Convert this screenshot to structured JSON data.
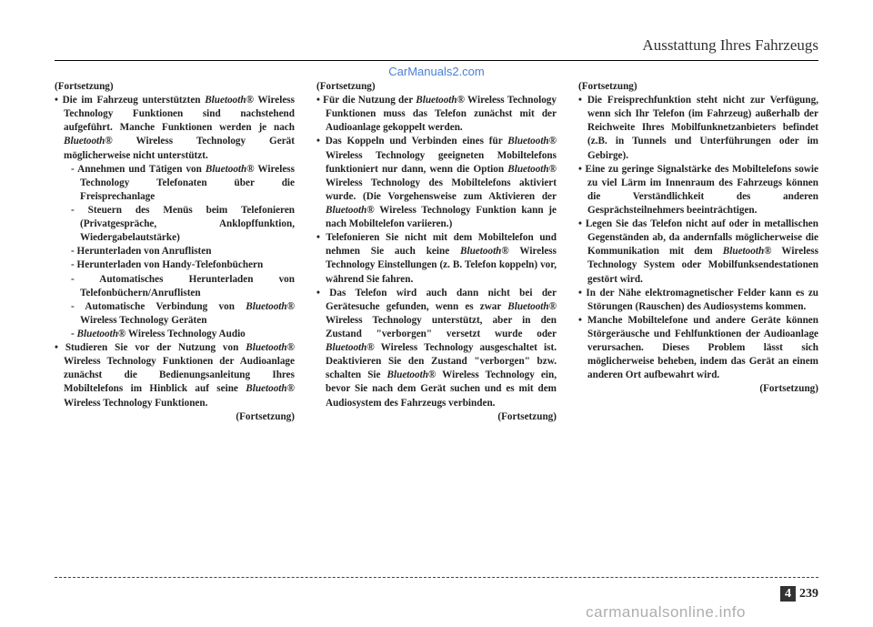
{
  "header": {
    "title": "Ausstattung Ihres Fahrzeugs"
  },
  "watermark": {
    "top": "CarManuals2.com",
    "bottom": "carmanualsonline.info"
  },
  "pageNumber": {
    "section": "4",
    "page": "239"
  },
  "labels": {
    "continuation": "(Fortsetzung)"
  },
  "col1": {
    "b1_lead": "Die im Fahrzeug unterstützten ",
    "b1_bt": "Bluetooth®",
    "b1_mid": " Wireless Technology Funktionen sind nachstehend aufgeführt. Manche Funktionen werden je nach ",
    "b1_bt2": "Bluetooth®",
    "b1_tail": " Wireless Technology Gerät möglicherweise nicht unterstützt.",
    "d1_a": "Annehmen und Tätigen von ",
    "d1_bt": "Bluetooth®",
    "d1_b": " Wireless Technology Telefonaten über die Freisprechanlage",
    "d2": "Steuern des Menüs beim Telefonieren (Privatgespräche, Anklopffunktion, Wiedergabelautstärke)",
    "d3": "Herunterladen von Anruflisten",
    "d4": "Herunterladen von Handy-Telefonbüchern",
    "d5": "Automatisches Herunterladen von Telefonbüchern/Anruflisten",
    "d6_a": "Automatische Verbindung von ",
    "d6_bt": "Bluetooth®",
    "d6_b": " Wireless Technology Geräten",
    "d7_bt": "Bluetooth®",
    "d7_b": " Wireless Technology Audio",
    "b2_a": "Studieren Sie vor der Nutzung von ",
    "b2_bt": "Bluetooth®",
    "b2_b": " Wireless Technology Funktionen der Audioanlage zunächst die Bedienungsanleitung Ihres Mobiltelefons im Hinblick auf seine ",
    "b2_bt2": "Bluetooth®",
    "b2_c": " Wireless Technology Funktionen."
  },
  "col2": {
    "b1_a": "Für die Nutzung der ",
    "b1_bt": "Bluetooth®",
    "b1_b": " Wireless Technology Funktionen muss das Telefon zunächst mit der Audioanlage gekoppelt werden.",
    "b2_a": "Das Koppeln und Verbinden eines für ",
    "b2_bt": "Bluetooth®",
    "b2_b": " Wireless Technology geeigneten Mobiltelefons funktioniert nur dann, wenn die Option ",
    "b2_bt2": "Bluetooth®",
    "b2_c": " Wireless Technology des Mobiltelefons aktiviert wurde. (Die Vorgehensweise zum Aktivieren der ",
    "b2_bt3": "Bluetooth®",
    "b2_d": " Wireless Technology Funktion kann je nach Mobiltelefon variieren.)",
    "b3_a": "Telefonieren Sie nicht mit dem Mobiltelefon und nehmen Sie auch keine ",
    "b3_bt": "Bluetooth®",
    "b3_b": " Wireless Technology Einstellungen (z. B. Telefon koppeln) vor, während Sie fahren.",
    "b4_a": "Das Telefon wird auch dann nicht bei der Gerätesuche gefunden, wenn es zwar ",
    "b4_bt": "Bluetooth®",
    "b4_b": " Wireless Technology unterstützt, aber in den Zustand \"verborgen\" versetzt wurde oder ",
    "b4_bt2": "Bluetooth®",
    "b4_c": " Wireless Technology ausgeschaltet ist. Deaktivieren Sie den Zustand \"verborgen\" bzw. schalten Sie ",
    "b4_bt3": "Bluetooth®",
    "b4_d": " Wireless Technology ein, bevor Sie nach dem Gerät suchen und es mit dem Audiosystem des Fahrzeugs verbinden."
  },
  "col3": {
    "b1": "Die Freisprechfunktion steht nicht zur Verfügung, wenn sich Ihr Telefon (im Fahrzeug) außerhalb der Reichweite Ihres Mobilfunknetzanbieters befindet (z.B. in Tunnels und Unterführungen oder im Gebirge).",
    "b2": "Eine zu geringe Signalstärke des Mobiltelefons sowie zu viel Lärm im Innenraum des Fahrzeugs können die Verständlichkeit des anderen Gesprächsteilnehmers beeinträchtigen.",
    "b3_a": "Legen Sie das Telefon nicht auf oder in metallischen Gegenständen ab, da andernfalls möglicherweise die Kommunikation mit dem ",
    "b3_bt": "Bluetooth®",
    "b3_b": " Wireless Technology System oder Mobilfunksendestationen gestört wird.",
    "b4": "In der Nähe elektromagnetischer Felder kann es zu Störungen (Rauschen) des Audiosystems kommen.",
    "b5": "Manche Mobiltelefone und andere Geräte können Störgeräusche und Fehlfunktionen der Audioanlage verursachen. Dieses Problem lässt sich möglicherweise beheben, indem das Gerät an einem anderen Ort aufbewahrt wird."
  }
}
